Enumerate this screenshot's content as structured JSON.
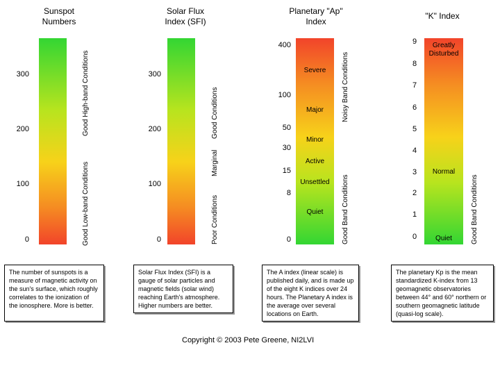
{
  "sunspot": {
    "title_line1": "Sunspot",
    "title_line2": "Numbers",
    "ticks": [
      "300",
      "200",
      "100",
      "0"
    ],
    "label_high": "Good High-band Conditions",
    "label_low": "Good Low-band Conditions",
    "description": "The number of sunspots is a measure of magnetic activity on the sun's surface, which roughly correlates to the ionization of the ionosphere. More is better."
  },
  "sfi": {
    "title_line1": "Solar Flux",
    "title_line2": "Index (SFI)",
    "ticks": [
      "300",
      "200",
      "100",
      "0"
    ],
    "label_good": "Good Conditions",
    "label_marginal": "Marginal",
    "label_poor": "Poor Conditions",
    "description": "Solar Flux Index (SFI) is a gauge of solar particles and magnetic fields (solar wind) reaching Earth's atmosphere. Higher numbers are better."
  },
  "ap": {
    "title_line1": "Planetary \"Ap\"",
    "title_line2": "Index",
    "ticks": [
      "400",
      "100",
      "50",
      "30",
      "15",
      "8",
      "0"
    ],
    "levels": [
      "Severe",
      "Major",
      "Minor",
      "Active",
      "Unsettled",
      "Quiet"
    ],
    "label_noisy": "Noisy Band Conditions",
    "label_good": "Good Band Conditions",
    "description": "The A index (linear scale) is published daily, and is made up of the eight K indices over 24 hours.  The Planetary A index is the average over several locations on Earth."
  },
  "k": {
    "title": "\"K\" Index",
    "ticks": [
      "9",
      "8",
      "7",
      "6",
      "5",
      "4",
      "3",
      "2",
      "1",
      "0"
    ],
    "level_top_line1": "Greatly",
    "level_top_line2": "Disturbed",
    "level_mid": "Normal",
    "level_bottom": "Quiet",
    "label_good": "Good Band Conditions",
    "description": "The planetary Kp is the mean standardized K-index from 13 geomagnetic observatories between 44° and 60° northern or southern geomagnetic latitude (quasi-log scale)."
  },
  "footer": {
    "copyright": "Copyright ©  2003   Pete Greene, NI2LVI"
  }
}
